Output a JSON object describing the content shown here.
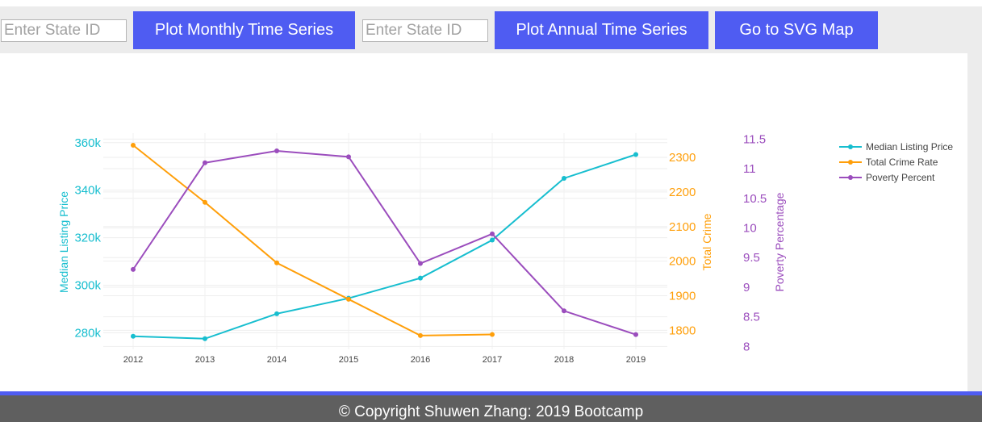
{
  "toolbar": {
    "monthly_input_placeholder": "Enter State ID",
    "monthly_button_label": "Plot Monthly Time Series",
    "annual_input_placeholder": "Enter State ID",
    "annual_button_label": "Plot Annual Time Series",
    "svg_map_button_label": "Go to SVG Map"
  },
  "colors": {
    "button": "#4f5cf2",
    "price": "#17becf",
    "crime": "#ff9f0a",
    "poverty": "#9b4dbd",
    "footer": "#5f5f5f"
  },
  "chart_data": {
    "type": "line",
    "x": [
      2012,
      2013,
      2014,
      2015,
      2016,
      2017,
      2018,
      2019
    ],
    "axes": {
      "y": {
        "label": "Median Listing Price",
        "range": [
          273000,
          364000
        ],
        "ticks": [
          280000,
          300000,
          320000,
          340000,
          360000
        ],
        "tick_labels": [
          "280k",
          "300k",
          "320k",
          "340k",
          "360k"
        ]
      },
      "y2": {
        "label": "Total Crime",
        "range": [
          1745,
          2370
        ],
        "ticks": [
          1800,
          1900,
          2000,
          2100,
          2200,
          2300
        ],
        "tick_labels": [
          "1800",
          "1900",
          "2000",
          "2100",
          "2200",
          "2300"
        ]
      },
      "y3": {
        "label": "Poverty Percentage",
        "range": [
          7.95,
          11.6
        ],
        "ticks": [
          8,
          8.5,
          9,
          9.5,
          10,
          10.5,
          11,
          11.5
        ],
        "tick_labels": [
          "8",
          "8.5",
          "9",
          "9.5",
          "10",
          "10.5",
          "11",
          "11.5"
        ]
      }
    },
    "series": [
      {
        "name": "Median Listing Price",
        "axis": "y",
        "color": "#17becf",
        "values": [
          278500,
          277500,
          288000,
          294500,
          303000,
          319000,
          345000,
          355000
        ]
      },
      {
        "name": "Total Crime Rate",
        "axis": "y2",
        "color": "#ff9f0a",
        "values": [
          2335,
          2170,
          1995,
          1890,
          1785,
          1788,
          null,
          null
        ]
      },
      {
        "name": "Poverty Percent",
        "axis": "y3",
        "color": "#9b4dbd",
        "values": [
          9.3,
          11.1,
          11.3,
          11.2,
          9.4,
          9.9,
          8.6,
          8.2
        ]
      }
    ],
    "legend_position": "top-right",
    "grid": true
  },
  "footer": {
    "copyright": "© Copyright Shuwen Zhang: 2019 Bootcamp"
  }
}
